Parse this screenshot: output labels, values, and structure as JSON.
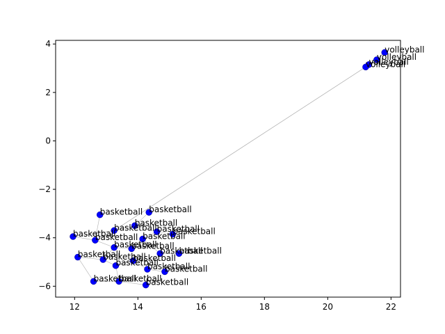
{
  "chart_data": {
    "type": "scatter",
    "title": "",
    "xlabel": "",
    "ylabel": "",
    "xlim": [
      11.4,
      22.3
    ],
    "ylim": [
      -6.45,
      4.15
    ],
    "xticks": [
      12,
      14,
      16,
      18,
      20,
      22
    ],
    "yticks": [
      -6,
      -4,
      -2,
      0,
      2,
      4
    ],
    "grid": false,
    "legend": "none",
    "marker_color": "#0000ff",
    "edge_color": "#b0b0b0",
    "points": [
      {
        "x": 21.8,
        "y": 3.65,
        "label": "volleyball"
      },
      {
        "x": 21.55,
        "y": 3.35,
        "label": "volleyball"
      },
      {
        "x": 21.3,
        "y": 3.15,
        "label": "volleyball"
      },
      {
        "x": 21.2,
        "y": 3.05,
        "label": "volleyball"
      },
      {
        "x": 14.35,
        "y": -2.95,
        "label": "basketball"
      },
      {
        "x": 12.8,
        "y": -3.05,
        "label": "basketball"
      },
      {
        "x": 13.9,
        "y": -3.5,
        "label": "basketball"
      },
      {
        "x": 13.25,
        "y": -3.7,
        "label": "basketball"
      },
      {
        "x": 14.6,
        "y": -3.75,
        "label": "basketball"
      },
      {
        "x": 15.1,
        "y": -3.85,
        "label": "basketball"
      },
      {
        "x": 11.95,
        "y": -3.95,
        "label": "basketball"
      },
      {
        "x": 12.65,
        "y": -4.1,
        "label": "basketball"
      },
      {
        "x": 14.15,
        "y": -4.05,
        "label": "basketball"
      },
      {
        "x": 13.25,
        "y": -4.4,
        "label": "basketball"
      },
      {
        "x": 13.8,
        "y": -4.45,
        "label": "basketball"
      },
      {
        "x": 14.7,
        "y": -4.65,
        "label": "basketball"
      },
      {
        "x": 15.3,
        "y": -4.65,
        "label": "basketball"
      },
      {
        "x": 12.1,
        "y": -4.8,
        "label": "basketball"
      },
      {
        "x": 12.9,
        "y": -4.9,
        "label": "basketball"
      },
      {
        "x": 13.85,
        "y": -4.95,
        "label": "basketball"
      },
      {
        "x": 13.3,
        "y": -5.15,
        "label": "basketball"
      },
      {
        "x": 14.3,
        "y": -5.3,
        "label": "basketball"
      },
      {
        "x": 14.85,
        "y": -5.4,
        "label": "basketball"
      },
      {
        "x": 12.6,
        "y": -5.8,
        "label": "basketball"
      },
      {
        "x": 13.4,
        "y": -5.8,
        "label": "basketball"
      },
      {
        "x": 14.25,
        "y": -5.95,
        "label": "basketball"
      }
    ],
    "edges": [
      [
        0,
        3
      ],
      [
        3,
        7
      ],
      [
        7,
        6
      ],
      [
        6,
        4
      ],
      [
        6,
        8
      ],
      [
        8,
        9
      ],
      [
        7,
        1
      ],
      [
        7,
        10
      ],
      [
        10,
        11
      ],
      [
        11,
        13
      ],
      [
        13,
        14
      ],
      [
        14,
        12
      ],
      [
        12,
        8
      ],
      [
        12,
        15
      ],
      [
        15,
        16
      ],
      [
        13,
        18
      ],
      [
        18,
        17
      ],
      [
        18,
        20
      ],
      [
        20,
        19
      ],
      [
        19,
        21
      ],
      [
        21,
        22
      ],
      [
        20,
        24
      ],
      [
        24,
        23
      ],
      [
        24,
        25
      ],
      [
        23,
        17
      ],
      [
        11,
        5
      ]
    ]
  }
}
